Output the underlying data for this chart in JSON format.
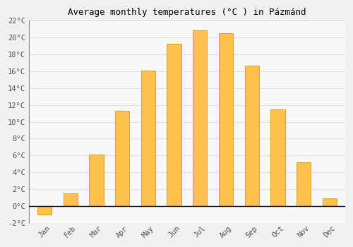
{
  "title": "Average monthly temperatures (°C ) in Pázmánd",
  "months": [
    "Jan",
    "Feb",
    "Mar",
    "Apr",
    "May",
    "Jun",
    "Jul",
    "Aug",
    "Sep",
    "Oct",
    "Nov",
    "Dec"
  ],
  "values": [
    -1.0,
    1.5,
    6.1,
    11.3,
    16.1,
    19.3,
    20.9,
    20.5,
    16.7,
    11.5,
    5.2,
    0.9
  ],
  "bar_color": "#FFC04C",
  "bar_edge_color": "#E8A020",
  "ylim": [
    -2,
    22
  ],
  "yticks": [
    -2,
    0,
    2,
    4,
    6,
    8,
    10,
    12,
    14,
    16,
    18,
    20,
    22
  ],
  "ytick_labels": [
    "-2°C",
    "0°C",
    "2°C",
    "4°C",
    "6°C",
    "8°C",
    "10°C",
    "12°C",
    "14°C",
    "16°C",
    "18°C",
    "20°C",
    "22°C"
  ],
  "background_color": "#F0F0F0",
  "plot_bg_color": "#F8F8F8",
  "grid_color": "#DDDDDD",
  "title_fontsize": 9,
  "tick_fontsize": 7.5,
  "bar_width": 0.55,
  "figsize": [
    5.0,
    3.5
  ],
  "dpi": 100
}
